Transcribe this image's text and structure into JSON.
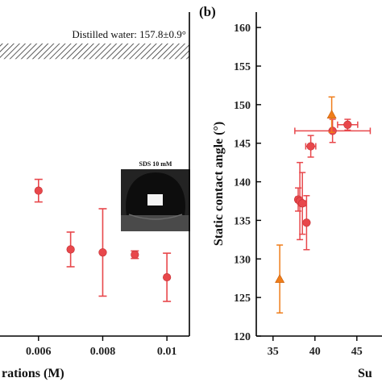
{
  "chart_data": [
    {
      "type": "scatter",
      "panel_label": "",
      "xlabel": "rations (M)",
      "ylabel": "",
      "xlim": [
        0.0048,
        0.0107
      ],
      "ylim": [
        120,
        163
      ],
      "x_ticks": [
        "0.006",
        "0.008",
        "0.01"
      ],
      "y_ticks": [],
      "annotation": "Distilled water: 157.8±0.9°",
      "reference_band": {
        "center": 157.8,
        "error": 0.9
      },
      "inset_label": "SDS 10 mM",
      "series": [
        {
          "color": "#e8474b",
          "marker": "circle",
          "points": [
            {
              "x": 0.006,
              "y": 139.3,
              "err": 1.5
            },
            {
              "x": 0.007,
              "y": 131.5,
              "err": 2.3
            },
            {
              "x": 0.008,
              "y": 131.1,
              "err": 5.8
            },
            {
              "x": 0.009,
              "y": 130.8,
              "err": 0.5
            },
            {
              "x": 0.01,
              "y": 127.8,
              "err": 3.2
            }
          ]
        }
      ]
    },
    {
      "type": "scatter",
      "panel_label": "(b)",
      "xlabel": "Su",
      "ylabel": "Static contact angle (°)",
      "xlim": [
        33,
        48
      ],
      "ylim": [
        120,
        162
      ],
      "x_ticks": [
        "35",
        "40",
        "45"
      ],
      "y_ticks": [
        "120",
        "125",
        "130",
        "135",
        "140",
        "145",
        "150",
        "155",
        "160"
      ],
      "series": [
        {
          "color": "#e8474b",
          "marker": "circle",
          "points": [
            {
              "x": 38.0,
              "y": 137.7,
              "yerr": 1.5,
              "xerr": 0.3
            },
            {
              "x": 38.2,
              "y": 137.5,
              "yerr": 5.0,
              "xerr": 0.3
            },
            {
              "x": 38.5,
              "y": 137.2,
              "yerr": 4.0,
              "xerr": 0.4
            },
            {
              "x": 39.0,
              "y": 134.7,
              "yerr": 3.5,
              "xerr": 0.2
            },
            {
              "x": 39.5,
              "y": 144.6,
              "yerr": 1.4,
              "xerr": 0.6
            },
            {
              "x": 42.1,
              "y": 146.6,
              "yerr": 1.5,
              "xerr": 4.5
            },
            {
              "x": 43.9,
              "y": 147.4,
              "yerr": 0.7,
              "xerr": 1.2
            }
          ]
        },
        {
          "color": "#ef7d1a",
          "marker": "triangle",
          "points": [
            {
              "x": 35.8,
              "y": 127.4,
              "yerr": 4.4,
              "xerr": 0
            },
            {
              "x": 42.0,
              "y": 148.7,
              "yerr": 2.3,
              "xerr": 0
            }
          ]
        }
      ]
    }
  ]
}
